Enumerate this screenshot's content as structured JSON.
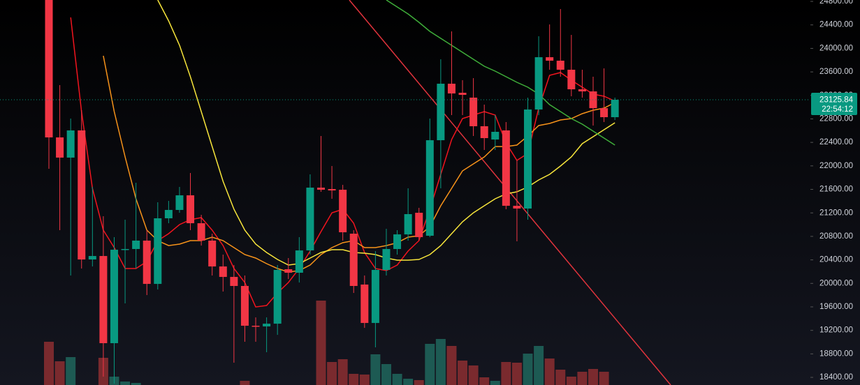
{
  "chart_data": {
    "type": "candlestick",
    "ylim": [
      18270,
      24824
    ],
    "yticks": [
      {
        "value": 18400,
        "label": "18400.00"
      },
      {
        "value": 18800,
        "label": "18800.00"
      },
      {
        "value": 19200,
        "label": "19200.00"
      },
      {
        "value": 19600,
        "label": "19600.00"
      },
      {
        "value": 20000,
        "label": "20000.00"
      },
      {
        "value": 20400,
        "label": "20400.00"
      },
      {
        "value": 20800,
        "label": "20800.00"
      },
      {
        "value": 21200,
        "label": "21200.00"
      },
      {
        "value": 21600,
        "label": "21600.00"
      },
      {
        "value": 22000,
        "label": "22000.00"
      },
      {
        "value": 22400,
        "label": "22400.00"
      },
      {
        "value": 22800,
        "label": "22800.00"
      },
      {
        "value": 23200,
        "label": "23200.00"
      },
      {
        "value": 23600,
        "label": "23600.00"
      },
      {
        "value": 24000,
        "label": "24000.00"
      },
      {
        "value": 24400,
        "label": "24400.00"
      },
      {
        "value": 24800,
        "label": "24800.00"
      }
    ],
    "up_color": "#089981",
    "down_color": "#f23645",
    "volume_up_color": "#1d5a53",
    "volume_down_color": "#7a2a2e",
    "open": [
      25000,
      22485,
      22141,
      22604,
      20407,
      20466,
      18982,
      20573,
      20585,
      20728,
      19991,
      21108,
      21250,
      21499,
      21024,
      20728,
      20288,
      20110,
      19956,
      19279,
      19267,
      19314,
      20241,
      20181,
      20561,
      21630,
      21606,
      21594,
      20846,
      19980,
      19326,
      20229,
      20585,
      20834,
      21202,
      20811,
      22437,
      23399,
      23245,
      23162,
      22675,
      22449,
      22604,
      21321,
      21274,
      22960,
      23850,
      23791,
      23637,
      23304,
      23268,
      22983,
      22829
    ],
    "high": [
      25200,
      23375,
      22805,
      22948,
      21642,
      21143,
      20787,
      21084,
      21713,
      20906,
      21381,
      21404,
      21642,
      21879,
      21167,
      20846,
      20490,
      20312,
      20134,
      19421,
      19421,
      20312,
      20431,
      20787,
      21856,
      22509,
      21998,
      21677,
      20906,
      20134,
      20550,
      20929,
      20906,
      21618,
      21286,
      22805,
      23815,
      24290,
      23459,
      23494,
      23043,
      22865,
      22746,
      22093,
      23162,
      24207,
      24408,
      24670,
      24230,
      23637,
      23518,
      23660,
      23162
    ],
    "low": [
      21951,
      20906,
      20134,
      20253,
      20288,
      18412,
      18293,
      19659,
      20253,
      19801,
      19896,
      21024,
      21202,
      20906,
      20644,
      20134,
      19861,
      18650,
      19006,
      19006,
      18828,
      19124,
      20074,
      20015,
      20490,
      21559,
      21440,
      20728,
      19837,
      19243,
      18911,
      20134,
      20490,
      20728,
      20728,
      20787,
      21618,
      22865,
      22865,
      22509,
      22271,
      22271,
      21262,
      20716,
      21084,
      22865,
      23637,
      23518,
      23185,
      23162,
      22687,
      22746,
      22782
    ],
    "close": [
      22485,
      22141,
      22604,
      20407,
      20466,
      18982,
      20573,
      20585,
      20728,
      19991,
      21108,
      21250,
      21499,
      21024,
      20728,
      20288,
      20110,
      19956,
      19279,
      19267,
      19314,
      20229,
      20181,
      20561,
      21630,
      21594,
      21582,
      20870,
      19956,
      19326,
      20229,
      20585,
      20834,
      21179,
      20787,
      22437,
      23399,
      23233,
      23209,
      22675,
      22473,
      22580,
      21321,
      21274,
      22960,
      23850,
      23791,
      23637,
      23304,
      23268,
      22983,
      22829,
      23125.84
    ],
    "volume": [
      62,
      34,
      40,
      0,
      0,
      39,
      12,
      5,
      3,
      0,
      0,
      0,
      0,
      0,
      0,
      0,
      0,
      0,
      6,
      0,
      0,
      0,
      0,
      0,
      0,
      121,
      33,
      37,
      16,
      15,
      44,
      30,
      16,
      9,
      7,
      59,
      66,
      56,
      35,
      28,
      11,
      6,
      33,
      32,
      45,
      56,
      38,
      22,
      12,
      19,
      23,
      19,
      0
    ],
    "lines": [
      {
        "color": "#f2141e",
        "values": [
          null,
          null,
          24527,
          22924,
          21618,
          20906,
          20609,
          20253,
          20253,
          20371,
          20728,
          20846,
          21001,
          21084,
          21119,
          20906,
          20644,
          20253,
          20015,
          19599,
          19623,
          19837,
          20015,
          20253,
          20550,
          20882,
          21202,
          21262,
          21024,
          20526,
          20253,
          20217,
          20312,
          20550,
          20728,
          21262,
          21856,
          22449,
          22805,
          22865,
          22924,
          22865,
          22390,
          22093,
          22212,
          22984,
          23542,
          23589,
          23459,
          23340,
          23221,
          23185,
          23102
        ]
      },
      {
        "color": "#f7931a",
        "values": [
          null,
          null,
          null,
          null,
          null,
          23874,
          22924,
          22152,
          21440,
          20906,
          20728,
          20644,
          20668,
          20728,
          20728,
          20787,
          20728,
          20609,
          20490,
          20431,
          20336,
          20253,
          20193,
          20217,
          20312,
          20490,
          20609,
          20692,
          20728,
          20609,
          20609,
          20644,
          20692,
          20787,
          20811,
          20965,
          21321,
          21618,
          21915,
          22034,
          22152,
          22330,
          22330,
          22354,
          22509,
          22687,
          22722,
          22782,
          22805,
          22889,
          22948,
          22984,
          23079
        ]
      },
      {
        "color": "#f7e53b",
        "values": [
          null,
          null,
          null,
          null,
          null,
          null,
          null,
          null,
          null,
          null,
          24824,
          24468,
          24052,
          23518,
          22924,
          22330,
          21737,
          21262,
          20906,
          20668,
          20526,
          20407,
          20312,
          20336,
          20431,
          20526,
          20573,
          20573,
          20526,
          20514,
          20490,
          20431,
          20395,
          20395,
          20407,
          20490,
          20644,
          20846,
          21048,
          21202,
          21321,
          21440,
          21523,
          21559,
          21642,
          21761,
          21856,
          21998,
          22152,
          22378,
          22497,
          22616,
          22734
        ]
      },
      {
        "color": "#3fae3a",
        "values": [
          null,
          null,
          null,
          null,
          null,
          null,
          null,
          null,
          null,
          null,
          null,
          null,
          null,
          null,
          null,
          null,
          null,
          null,
          null,
          null,
          null,
          null,
          null,
          null,
          null,
          null,
          null,
          null,
          null,
          null,
          null,
          24824,
          24705,
          24587,
          24444,
          24290,
          24171,
          24052,
          23933,
          23815,
          23696,
          23613,
          23518,
          23423,
          23340,
          23221,
          23043,
          22924,
          22805,
          22711,
          22592,
          22473,
          22354
        ]
      }
    ],
    "last_price": 23125.84,
    "countdown": "22:54:12"
  }
}
